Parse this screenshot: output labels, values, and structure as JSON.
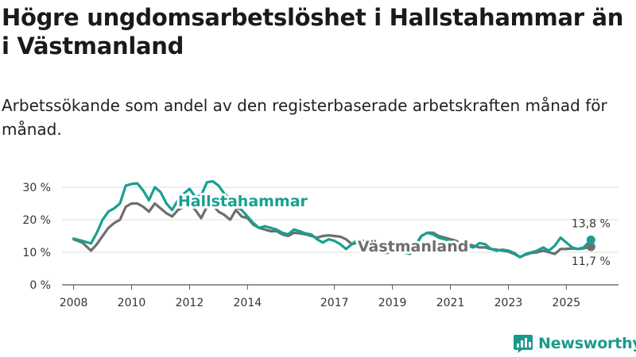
{
  "header": {
    "title": "Högre ungdomsarbetslöshet i Hallstahammar än i Västmanland",
    "subtitle": "Arbetssökande som andel av den registerbaserade arbetskraften månad för månad."
  },
  "brand": {
    "name": "Newsworthy"
  },
  "chart_data": {
    "type": "line",
    "title": "Högre ungdomsarbetslöshet i Hallstahammar än i Västmanland",
    "subtitle": "Arbetssökande som andel av den registerbaserade arbetskraften månad för månad.",
    "xlabel": "",
    "ylabel": "",
    "xlim": [
      2007.6,
      2026.8
    ],
    "ylim": [
      0,
      30
    ],
    "x_ticks": [
      2008,
      2010,
      2012,
      2014,
      2017,
      2019,
      2021,
      2023,
      2025
    ],
    "x_tick_labels": [
      "2008",
      "2010",
      "2012",
      "2014",
      "2017",
      "2019",
      "2021",
      "2023",
      "2025"
    ],
    "y_ticks": [
      0,
      10,
      20,
      30
    ],
    "y_tick_labels": [
      "0 %",
      "10 %",
      "20 %",
      "30 %"
    ],
    "grid": true,
    "series": [
      {
        "name": "Hallstahammar",
        "color": "#17a091",
        "x": [
          2008.0,
          2008.3,
          2008.6,
          2008.8,
          2009.0,
          2009.2,
          2009.4,
          2009.6,
          2009.8,
          2010.0,
          2010.2,
          2010.4,
          2010.6,
          2010.8,
          2011.0,
          2011.2,
          2011.4,
          2011.6,
          2011.8,
          2012.0,
          2012.2,
          2012.4,
          2012.6,
          2012.8,
          2013.0,
          2013.2,
          2013.4,
          2013.6,
          2013.8,
          2014.0,
          2014.2,
          2014.4,
          2014.6,
          2014.8,
          2015.0,
          2015.2,
          2015.4,
          2015.6,
          2015.8,
          2016.0,
          2016.2,
          2016.4,
          2016.6,
          2016.8,
          2017.0,
          2017.2,
          2017.4,
          2017.6,
          2017.8,
          2018.0,
          2018.2,
          2018.4,
          2018.6,
          2018.8,
          2019.0,
          2019.2,
          2019.4,
          2019.6,
          2019.8,
          2020.0,
          2020.2,
          2020.4,
          2020.6,
          2020.8,
          2021.0,
          2021.2,
          2021.4,
          2021.6,
          2021.8,
          2022.0,
          2022.2,
          2022.4,
          2022.6,
          2022.8,
          2023.0,
          2023.2,
          2023.4,
          2023.6,
          2023.8,
          2024.0,
          2024.2,
          2024.4,
          2024.6,
          2024.8,
          2025.0,
          2025.2,
          2025.4,
          2025.6,
          2025.85
        ],
        "values": [
          14.2,
          13.5,
          12.7,
          16.0,
          20.0,
          22.5,
          23.5,
          25.0,
          30.5,
          31.0,
          31.2,
          29.0,
          26.0,
          30.0,
          28.5,
          25.0,
          23.0,
          26.0,
          28.0,
          29.5,
          27.0,
          27.5,
          31.5,
          31.8,
          30.5,
          28.0,
          26.5,
          24.0,
          23.0,
          21.0,
          19.0,
          17.5,
          18.0,
          17.5,
          17.0,
          16.0,
          15.5,
          17.0,
          16.5,
          15.8,
          15.5,
          14.0,
          13.0,
          14.0,
          13.5,
          12.5,
          11.0,
          12.5,
          13.8,
          13.5,
          11.5,
          10.5,
          10.0,
          9.8,
          10.2,
          10.5,
          10.0,
          9.5,
          12.0,
          15.0,
          16.0,
          15.5,
          14.5,
          14.0,
          13.5,
          12.5,
          12.8,
          12.0,
          11.5,
          12.8,
          12.5,
          11.0,
          10.5,
          10.8,
          10.5,
          9.8,
          8.5,
          9.5,
          10.0,
          10.5,
          11.5,
          10.5,
          12.0,
          14.5,
          13.0,
          11.5,
          11.0,
          11.5,
          13.8
        ],
        "end_label": "13,8 %"
      },
      {
        "name": "Västmanland",
        "color": "#6e6e6e",
        "x": [
          2008.0,
          2008.3,
          2008.6,
          2008.8,
          2009.0,
          2009.2,
          2009.4,
          2009.6,
          2009.8,
          2010.0,
          2010.2,
          2010.4,
          2010.6,
          2010.8,
          2011.0,
          2011.2,
          2011.4,
          2011.6,
          2011.8,
          2012.0,
          2012.2,
          2012.4,
          2012.6,
          2012.8,
          2013.0,
          2013.2,
          2013.4,
          2013.6,
          2013.8,
          2014.0,
          2014.2,
          2014.4,
          2014.6,
          2014.8,
          2015.0,
          2015.2,
          2015.4,
          2015.6,
          2015.8,
          2016.0,
          2016.2,
          2016.4,
          2016.6,
          2016.8,
          2017.0,
          2017.2,
          2017.4,
          2017.6,
          2017.8,
          2018.0,
          2018.2,
          2018.4,
          2018.6,
          2018.8,
          2019.0,
          2019.2,
          2019.4,
          2019.6,
          2019.8,
          2020.0,
          2020.2,
          2020.4,
          2020.6,
          2020.8,
          2021.0,
          2021.2,
          2021.4,
          2021.6,
          2021.8,
          2022.0,
          2022.2,
          2022.4,
          2022.6,
          2022.8,
          2023.0,
          2023.2,
          2023.4,
          2023.6,
          2023.8,
          2024.0,
          2024.2,
          2024.4,
          2024.6,
          2024.8,
          2025.0,
          2025.2,
          2025.4,
          2025.6,
          2025.85
        ],
        "values": [
          14.0,
          13.0,
          10.5,
          12.5,
          15.0,
          17.5,
          19.0,
          20.0,
          24.0,
          25.0,
          25.0,
          24.0,
          22.5,
          25.0,
          23.5,
          22.0,
          21.0,
          23.0,
          24.0,
          25.0,
          23.0,
          20.5,
          24.0,
          24.5,
          22.5,
          21.5,
          20.0,
          23.0,
          21.0,
          20.5,
          18.5,
          17.5,
          17.0,
          16.5,
          16.5,
          15.5,
          15.0,
          16.0,
          15.8,
          15.5,
          15.0,
          14.5,
          15.0,
          15.2,
          15.0,
          14.8,
          14.0,
          12.5,
          13.0,
          13.0,
          12.0,
          11.0,
          10.5,
          10.2,
          10.5,
          11.0,
          10.8,
          10.5,
          12.5,
          15.0,
          16.0,
          16.0,
          15.0,
          14.5,
          14.0,
          13.5,
          12.5,
          12.5,
          12.0,
          11.5,
          11.5,
          11.0,
          10.8,
          10.5,
          10.2,
          9.5,
          8.5,
          9.3,
          9.8,
          10.0,
          10.5,
          10.0,
          9.5,
          11.0,
          11.0,
          11.2,
          11.0,
          11.2,
          11.7
        ],
        "end_label": "11,7 %"
      }
    ]
  }
}
